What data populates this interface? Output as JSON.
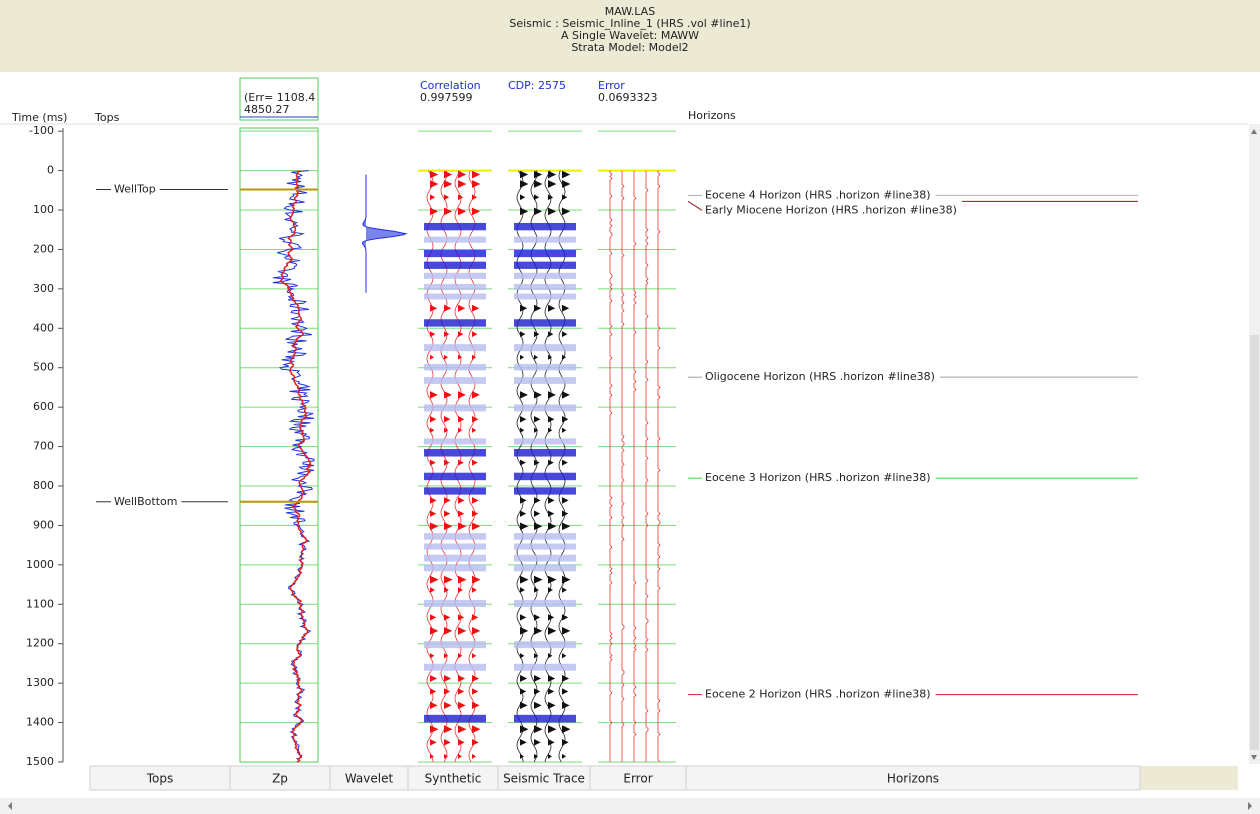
{
  "header": {
    "lines": [
      "MAW.LAS",
      "Seismic : Seismic_Inline_1 (HRS .vol #line1)",
      "A Single Wavelet: MAWW",
      "Strata Model: Model2"
    ]
  },
  "columns": {
    "time": "Time (ms)",
    "tops": "Tops",
    "zp_err": "(Err= 1108.4",
    "zp_value": "4850.27",
    "correlation_label": "Correlation",
    "correlation": "0.997599",
    "cdp": "CDP: 2575",
    "error_label": "Error",
    "error": "0.0693323",
    "horizons": "Horizons"
  },
  "time_axis": {
    "lim": [
      -108,
      1500
    ],
    "ticks": [
      -100,
      0,
      100,
      200,
      300,
      400,
      500,
      600,
      700,
      800,
      900,
      1000,
      1100,
      1200,
      1300,
      1400,
      1500
    ]
  },
  "tops": [
    {
      "name": "WellTop",
      "time": 48
    },
    {
      "name": "WellBottom",
      "time": 840
    }
  ],
  "horizons": [
    {
      "label": "Eocene 4 Horizon (HRS .horizon #line38)",
      "time": 63,
      "color": "#b0b0b0"
    },
    {
      "label": "Early Miocene Horizon (HRS .horizon #line38)",
      "time": 78,
      "color": "#8b1a1a"
    },
    {
      "label": "Oligocene Horizon (HRS .horizon #line38)",
      "time": 524,
      "color": "#a0a0a0"
    },
    {
      "label": "Eocene 3 Horizon (HRS .horizon #line38)",
      "time": 780,
      "color": "#33dd33"
    },
    {
      "label": "Eocene 2 Horizon (HRS .horizon #line38)",
      "time": 1329,
      "color": "#cc2222"
    }
  ],
  "footer_tabs": [
    "Tops",
    "Zp",
    "Wavelet",
    "Synthetic",
    "Seismic Trace",
    "Error",
    "Horizons"
  ]
}
